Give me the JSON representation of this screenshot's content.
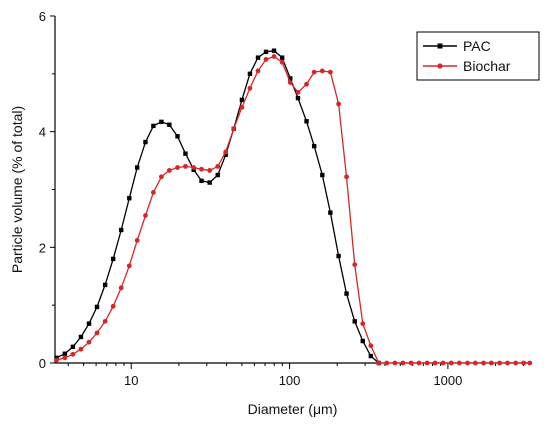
{
  "chart_data": {
    "type": "line",
    "xlabel": "Diameter (μm)",
    "ylabel": "Particle volume (% of total)",
    "x_scale": "log",
    "xlim": [
      3.3,
      3300
    ],
    "ylim": [
      0,
      6
    ],
    "x_ticks": [
      10,
      100,
      1000
    ],
    "y_ticks": [
      0,
      2,
      4,
      6
    ],
    "legend_position": "top-right",
    "grid": false,
    "series": [
      {
        "name": "PAC",
        "color": "#000000",
        "marker": "square",
        "points": [
          [
            3.38,
            0.09
          ],
          [
            3.81,
            0.16
          ],
          [
            4.28,
            0.28
          ],
          [
            4.81,
            0.45
          ],
          [
            5.41,
            0.68
          ],
          [
            6.08,
            0.97
          ],
          [
            6.84,
            1.35
          ],
          [
            7.69,
            1.8
          ],
          [
            8.64,
            2.3
          ],
          [
            9.72,
            2.85
          ],
          [
            10.9,
            3.38
          ],
          [
            12.3,
            3.82
          ],
          [
            13.8,
            4.1
          ],
          [
            15.5,
            4.17
          ],
          [
            17.4,
            4.12
          ],
          [
            19.6,
            3.92
          ],
          [
            22.0,
            3.62
          ],
          [
            24.8,
            3.34
          ],
          [
            27.8,
            3.15
          ],
          [
            31.3,
            3.12
          ],
          [
            35.2,
            3.25
          ],
          [
            39.5,
            3.6
          ],
          [
            44.4,
            4.05
          ],
          [
            50.0,
            4.55
          ],
          [
            56.2,
            5.0
          ],
          [
            63.2,
            5.28
          ],
          [
            71.0,
            5.38
          ],
          [
            79.8,
            5.4
          ],
          [
            89.8,
            5.28
          ],
          [
            101,
            4.92
          ],
          [
            113,
            4.58
          ],
          [
            128,
            4.18
          ],
          [
            143,
            3.75
          ],
          [
            161,
            3.25
          ],
          [
            181,
            2.6
          ],
          [
            204,
            1.85
          ],
          [
            229,
            1.2
          ],
          [
            258,
            0.72
          ],
          [
            290,
            0.38
          ],
          [
            326,
            0.12
          ],
          [
            366,
            0.0
          ]
        ]
      },
      {
        "name": "Biochar",
        "color": "#d62728",
        "marker": "circle",
        "points": [
          [
            3.38,
            0.05
          ],
          [
            3.81,
            0.09
          ],
          [
            4.28,
            0.15
          ],
          [
            4.81,
            0.24
          ],
          [
            5.41,
            0.36
          ],
          [
            6.08,
            0.52
          ],
          [
            6.84,
            0.72
          ],
          [
            7.69,
            0.98
          ],
          [
            8.64,
            1.3
          ],
          [
            9.72,
            1.68
          ],
          [
            10.9,
            2.12
          ],
          [
            12.3,
            2.55
          ],
          [
            13.8,
            2.95
          ],
          [
            15.5,
            3.22
          ],
          [
            17.4,
            3.33
          ],
          [
            19.6,
            3.38
          ],
          [
            22.0,
            3.4
          ],
          [
            24.8,
            3.38
          ],
          [
            27.8,
            3.35
          ],
          [
            31.3,
            3.33
          ],
          [
            35.2,
            3.4
          ],
          [
            39.5,
            3.65
          ],
          [
            44.4,
            4.05
          ],
          [
            50.0,
            4.42
          ],
          [
            56.2,
            4.75
          ],
          [
            63.2,
            5.05
          ],
          [
            71.0,
            5.25
          ],
          [
            79.8,
            5.3
          ],
          [
            89.8,
            5.2
          ],
          [
            101,
            4.85
          ],
          [
            113,
            4.68
          ],
          [
            128,
            4.82
          ],
          [
            143,
            5.03
          ],
          [
            161,
            5.05
          ],
          [
            181,
            5.03
          ],
          [
            204,
            4.48
          ],
          [
            229,
            3.22
          ],
          [
            258,
            1.7
          ],
          [
            290,
            0.68
          ],
          [
            326,
            0.3
          ],
          [
            366,
            0.0
          ],
          [
            411,
            0
          ],
          [
            463,
            0
          ],
          [
            520,
            0
          ],
          [
            585,
            0
          ],
          [
            657,
            0
          ],
          [
            739,
            0
          ],
          [
            830,
            0
          ],
          [
            933,
            0
          ],
          [
            1050,
            0
          ],
          [
            1180,
            0
          ],
          [
            1330,
            0
          ],
          [
            1490,
            0
          ],
          [
            1680,
            0
          ],
          [
            1880,
            0
          ],
          [
            2120,
            0
          ],
          [
            2380,
            0
          ],
          [
            2680,
            0
          ],
          [
            3010,
            0
          ],
          [
            3290,
            0
          ]
        ]
      }
    ]
  }
}
